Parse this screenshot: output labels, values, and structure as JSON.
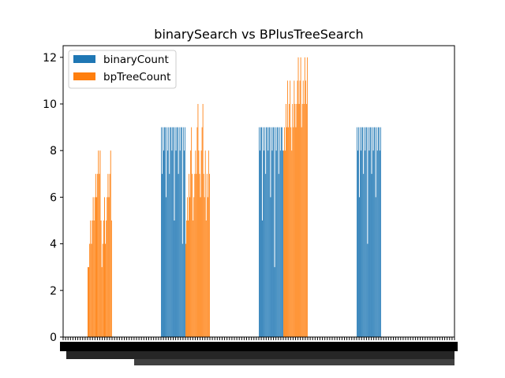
{
  "chart_data": {
    "type": "bar",
    "title": "binarySearch vs BPlusTreeSearch",
    "xlabel": "",
    "ylabel": "",
    "ylim": [
      0,
      12.5
    ],
    "y_ticks": [
      0,
      2,
      4,
      6,
      8,
      10,
      12
    ],
    "x_tick_labels_note": "dense overlapping category labels rendered as illegible rotated text",
    "legend": {
      "position": "top-left"
    },
    "colors": {
      "binaryCount": "#1f77b4",
      "bpTreeCount": "#ff7f0e"
    },
    "groups": [
      {
        "series": [
          {
            "name": "binaryCount",
            "values": []
          },
          {
            "name": "bpTreeCount",
            "values": [
              3,
              3,
              4,
              5,
              4,
              5,
              6,
              5,
              6,
              7,
              6,
              7,
              8,
              7,
              8,
              5,
              3,
              4,
              5,
              6,
              4,
              5,
              6,
              7,
              6,
              7,
              8,
              5
            ]
          }
        ]
      },
      {
        "series": [
          {
            "name": "binaryCount",
            "values": [
              9,
              7,
              9,
              8,
              9,
              9,
              6,
              9,
              8,
              9,
              7,
              9,
              9,
              8,
              9,
              9,
              5,
              9,
              8,
              9,
              9,
              7,
              9,
              8,
              9,
              9,
              4,
              9,
              8,
              9
            ]
          },
          {
            "name": "bpTreeCount",
            "values": [
              4,
              5,
              6,
              5,
              7,
              6,
              8,
              9,
              7,
              5,
              6,
              7,
              8,
              7,
              9,
              10,
              8,
              7,
              6,
              8,
              9,
              10,
              7,
              6,
              8,
              5,
              7,
              6,
              8,
              7
            ]
          }
        ]
      },
      {
        "series": [
          {
            "name": "binaryCount",
            "values": [
              9,
              8,
              9,
              9,
              5,
              9,
              8,
              9,
              7,
              9,
              9,
              8,
              9,
              9,
              6,
              9,
              8,
              9,
              9,
              3,
              9,
              8,
              9,
              9,
              7,
              9,
              8,
              9,
              9,
              8
            ]
          },
          {
            "name": "bpTreeCount",
            "values": [
              8,
              9,
              8,
              10,
              9,
              11,
              9,
              10,
              11,
              9,
              8,
              10,
              9,
              11,
              10,
              9,
              10,
              11,
              12,
              10,
              11,
              12,
              9,
              10,
              11,
              10,
              12,
              11,
              10,
              12
            ]
          }
        ]
      },
      {
        "series": [
          {
            "name": "binaryCount",
            "values": [
              9,
              8,
              9,
              6,
              9,
              8,
              9,
              9,
              7,
              9,
              8,
              9,
              9,
              4,
              9,
              8,
              9,
              9,
              7,
              9,
              8,
              9,
              9,
              6,
              9,
              8,
              9,
              9,
              8,
              9
            ]
          },
          {
            "name": "bpTreeCount",
            "values": []
          }
        ]
      }
    ]
  }
}
